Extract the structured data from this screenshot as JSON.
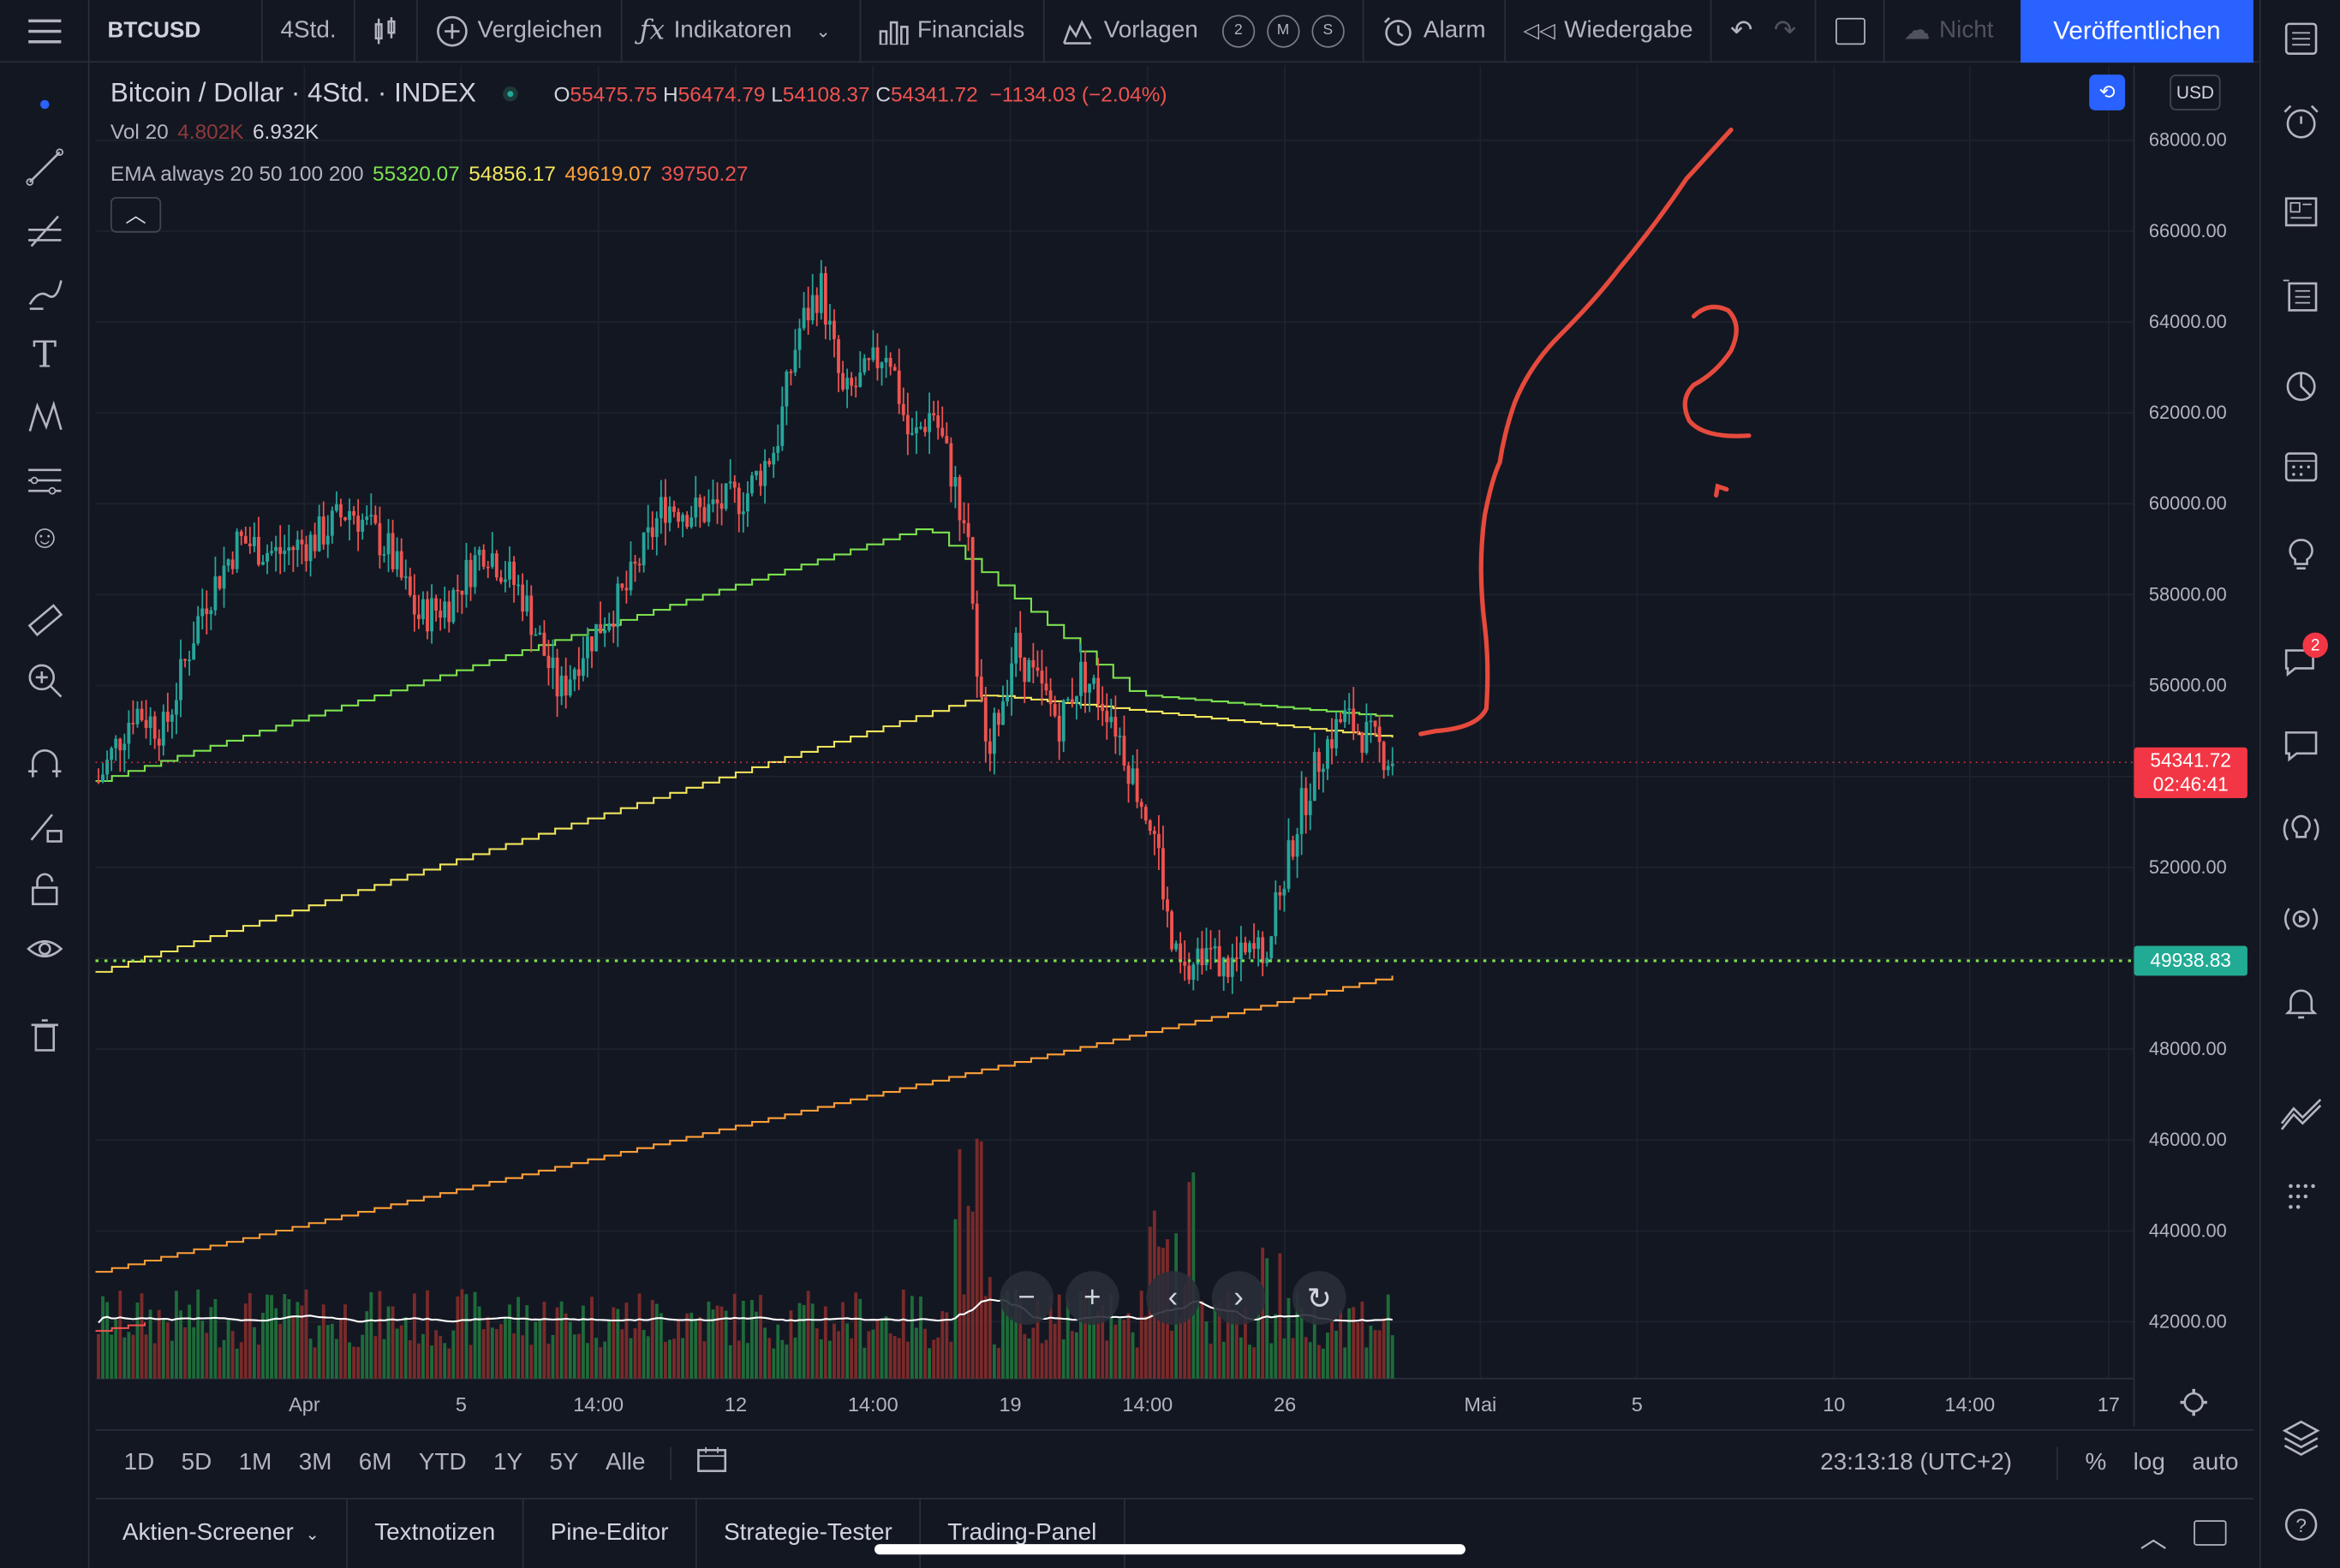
{
  "topbar": {
    "symbol": "BTCUSD",
    "interval": "4Std.",
    "compare": "Vergleichen",
    "indicators": "Indikatoren",
    "financials": "Financials",
    "templates": "Vorlagen",
    "template_keys": [
      "2",
      "M",
      "S"
    ],
    "alert": "Alarm",
    "replay": "Wiedergabe",
    "not_saved": "Nicht",
    "publish": "Veröffentlichen"
  },
  "legend": {
    "title": "Bitcoin / Dollar · 4Std. · INDEX",
    "o_label": "O",
    "o": "55475.75",
    "h_label": "H",
    "h": "56474.79",
    "l_label": "L",
    "l": "54108.37",
    "c_label": "C",
    "c": "54341.72",
    "change": "−1134.03 (−2.04%)",
    "vol_label": "Vol 20",
    "vol1": "4.802K",
    "vol2": "6.932K",
    "ema_label": "EMA always 20 50 100 200",
    "ema20": "55320.07",
    "ema50": "54856.17",
    "ema100": "49619.07",
    "ema200": "39750.27"
  },
  "currency": "USD",
  "colors": {
    "ema20": "#7ce24e",
    "ema50": "#f2e55c",
    "ema100": "#ff9f38",
    "ema200": "#ef5350",
    "up": "#26a69a",
    "down": "#ef5350",
    "annotation": "#e64a3c"
  },
  "price_axis": {
    "ticks": [
      "68000.00",
      "66000.00",
      "64000.00",
      "62000.00",
      "60000.00",
      "58000.00",
      "56000.00",
      "52000.00",
      "48000.00",
      "46000.00",
      "44000.00",
      "42000.00"
    ],
    "current_price": "54341.72",
    "countdown": "02:46:41",
    "level_price": "49938.83"
  },
  "time_axis": {
    "ticks": [
      "Apr",
      "5",
      "14:00",
      "12",
      "14:00",
      "19",
      "14:00",
      "26",
      "Mai",
      "5",
      "10",
      "14:00",
      "17"
    ]
  },
  "range_bar": {
    "ranges": [
      "1D",
      "5D",
      "1M",
      "3M",
      "6M",
      "YTD",
      "1Y",
      "5Y",
      "Alle"
    ],
    "clock": "23:13:18 (UTC+2)",
    "percent": "%",
    "log": "log",
    "auto": "auto"
  },
  "bottom_tabs": [
    "Aktien-Screener",
    "Textnotizen",
    "Pine-Editor",
    "Strategie-Tester",
    "Trading-Panel"
  ],
  "right_badge": "2",
  "chart_data": {
    "type": "candlestick",
    "xlabel": "",
    "ylabel": "",
    "ylim": [
      41000,
      69000
    ],
    "legend": "top-left",
    "grid": true,
    "candles": []
  }
}
